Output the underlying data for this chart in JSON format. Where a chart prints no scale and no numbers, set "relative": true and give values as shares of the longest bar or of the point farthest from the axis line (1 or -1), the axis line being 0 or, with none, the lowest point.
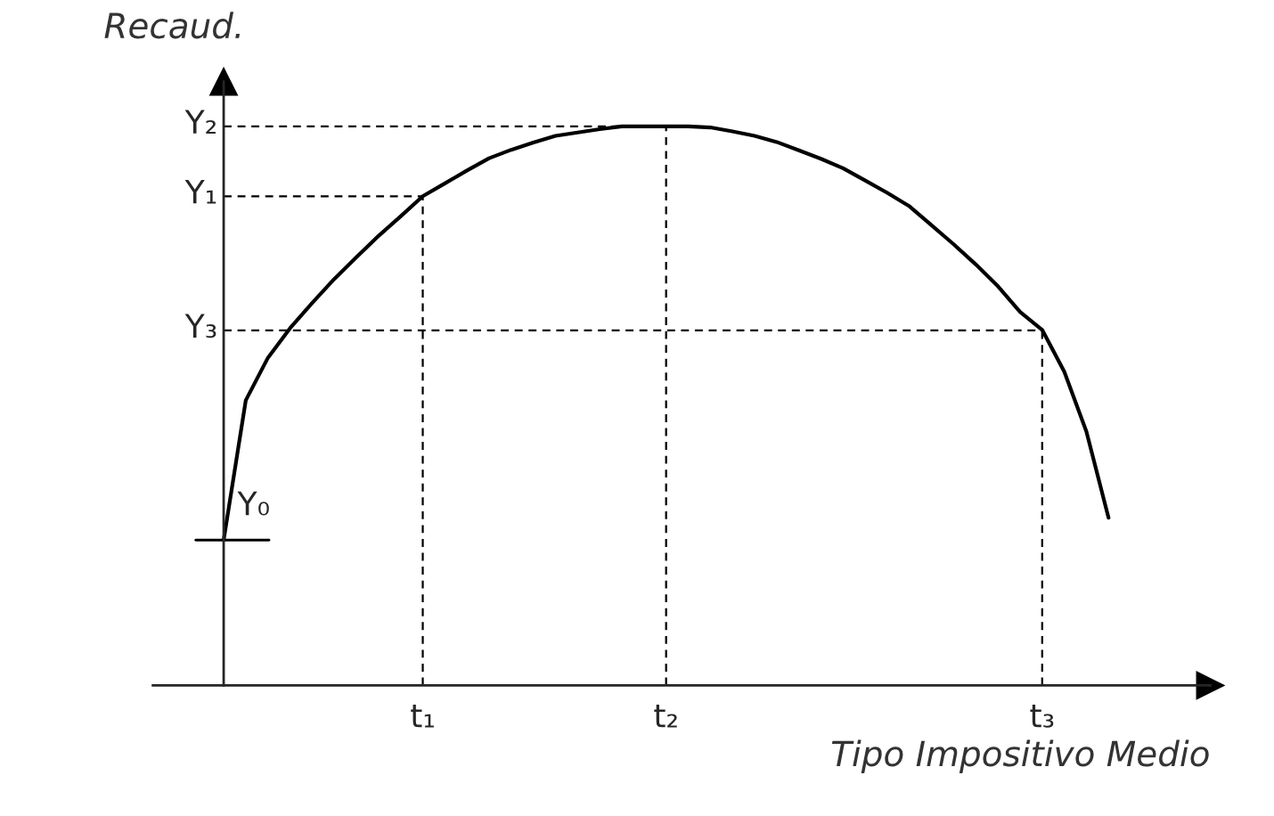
{
  "chart_data": {
    "type": "line",
    "relative": true,
    "xlabel": "Tipo Impositivo Medio",
    "ylabel": "Recaud.",
    "categories": [
      null,
      null,
      null,
      null,
      null,
      null,
      null,
      null,
      null,
      "t₁",
      null,
      null,
      null,
      null,
      null,
      null,
      null,
      null,
      null,
      null,
      "t₂",
      null,
      null,
      null,
      null,
      null,
      null,
      null,
      null,
      null,
      null,
      null,
      null,
      null,
      null,
      null,
      null,
      "t₃",
      null,
      null,
      null
    ],
    "grid": false,
    "legend": false,
    "marker": "none",
    "line_style": "solid",
    "series": [
      {
        "color": "#000000",
        "values": [
          0.26,
          0.51,
          0.586,
          0.639,
          0.684,
          0.727,
          0.766,
          0.804,
          0.839,
          0.875,
          0.898,
          0.921,
          0.943,
          0.958,
          0.971,
          0.983,
          0.989,
          0.995,
          1.0,
          1.0,
          1.0,
          1.0,
          0.998,
          0.991,
          0.983,
          0.972,
          0.957,
          0.942,
          0.925,
          0.903,
          0.881,
          0.857,
          0.823,
          0.789,
          0.753,
          0.714,
          0.668,
          0.636,
          0.561,
          0.454,
          0.3
        ]
      }
    ],
    "ref_lines": [
      {
        "axis": "y",
        "value": 1.0,
        "label": "Y₂",
        "line_style": "dashed",
        "color": "#000000"
      },
      {
        "axis": "y",
        "value": 0.875,
        "label": "Y₁",
        "line_style": "dashed",
        "color": "#000000"
      },
      {
        "axis": "y",
        "value": 0.635,
        "label": "Y₃",
        "line_style": "dashed",
        "color": "#000000"
      },
      {
        "axis": "y",
        "value": 0.26,
        "label": "Y₀",
        "line_style": "solid",
        "color": "#000000"
      },
      {
        "axis": "x",
        "value": "t₂",
        "line_style": "dashed",
        "color": "#000000"
      },
      {
        "axis": "x",
        "value": "t₁",
        "line_style": "dashed",
        "color": "#000000"
      },
      {
        "axis": "x",
        "value": "t₃",
        "line_style": "dashed",
        "color": "#000000"
      }
    ]
  }
}
